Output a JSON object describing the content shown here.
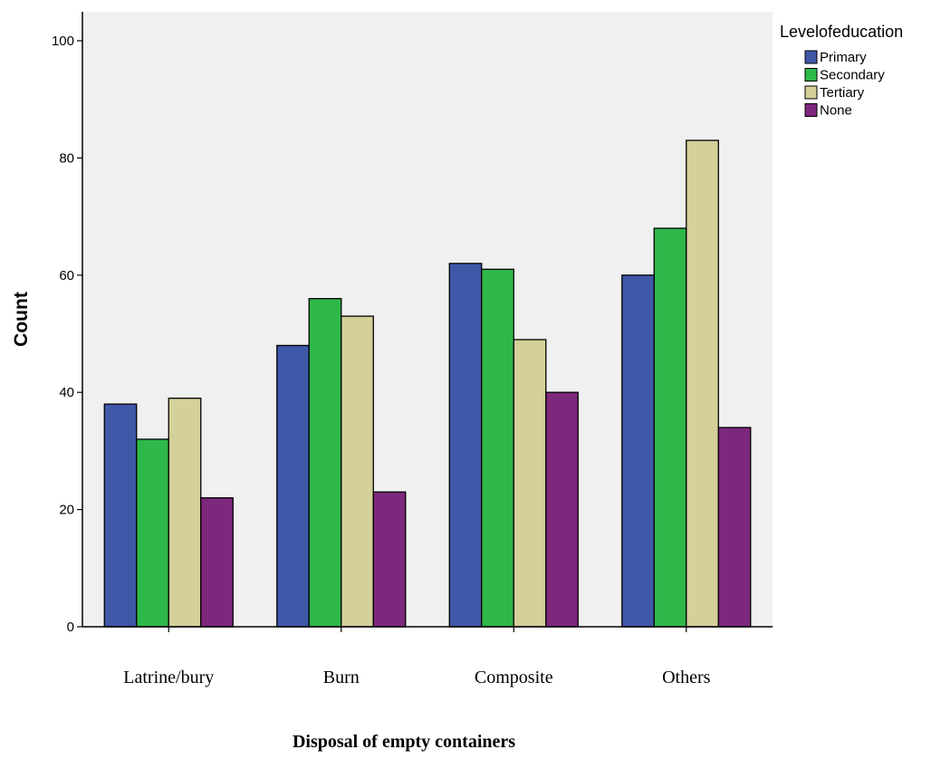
{
  "chart_data": {
    "type": "bar",
    "categories": [
      "Latrine/bury",
      "Burn",
      "Composite",
      "Others"
    ],
    "series": [
      {
        "name": "Primary",
        "values": [
          38,
          48,
          62,
          60
        ],
        "color": "#3f58a8"
      },
      {
        "name": "Secondary",
        "values": [
          32,
          56,
          61,
          68
        ],
        "color": "#2fb84a"
      },
      {
        "name": "Tertiary",
        "values": [
          39,
          53,
          49,
          83
        ],
        "color": "#d4d09a"
      },
      {
        "name": "None",
        "values": [
          22,
          23,
          40,
          34
        ],
        "color": "#7e287d"
      }
    ],
    "title": "",
    "xlabel": "Disposal of empty containers",
    "ylabel": "Count",
    "ylim": [
      0,
      100
    ],
    "yticks": [
      0,
      20,
      40,
      60,
      80,
      100
    ],
    "legend_title": "Levelofeducation",
    "legend_position": "top-right",
    "grid": false,
    "plot_background": "#f0f0f0"
  }
}
